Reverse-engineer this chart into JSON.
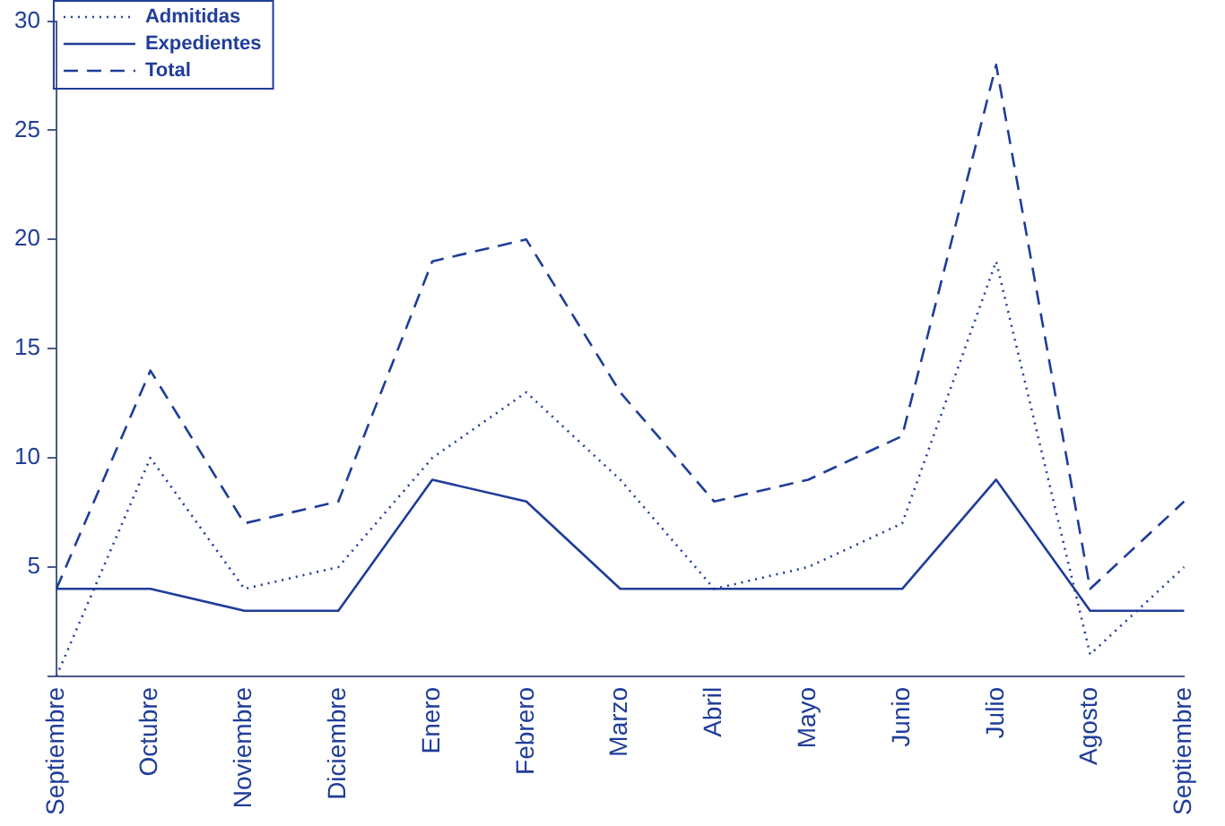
{
  "chart_data": {
    "type": "line",
    "categories": [
      "Septiembre",
      "Octubre",
      "Noviembre",
      "Diciembre",
      "Enero",
      "Febrero",
      "Marzo",
      "Abril",
      "Mayo",
      "Junio",
      "Julio",
      "Agosto",
      "Septiembre"
    ],
    "series": [
      {
        "name": "Admitidas",
        "color": "#1f3d99",
        "line_style": "dotted",
        "values": [
          0,
          10,
          4,
          5,
          10,
          13,
          9,
          4,
          5,
          7,
          19,
          1,
          5
        ]
      },
      {
        "name": "Expedientes",
        "color": "#1f3d99",
        "line_style": "solid",
        "values": [
          4,
          4,
          3,
          3,
          9,
          8,
          4,
          4,
          4,
          4,
          9,
          3,
          3
        ]
      },
      {
        "name": "Total",
        "color": "#1f3d99",
        "line_style": "dashed",
        "values": [
          4,
          14,
          7,
          8,
          19,
          20,
          13,
          8,
          9,
          11,
          28,
          4,
          8
        ]
      }
    ],
    "ylim": [
      0,
      30
    ],
    "yticks": [
      {
        "value": 0,
        "label": null
      },
      5,
      10,
      15,
      20,
      25,
      30
    ],
    "grid": false,
    "legend": "top left",
    "marker": "none"
  }
}
